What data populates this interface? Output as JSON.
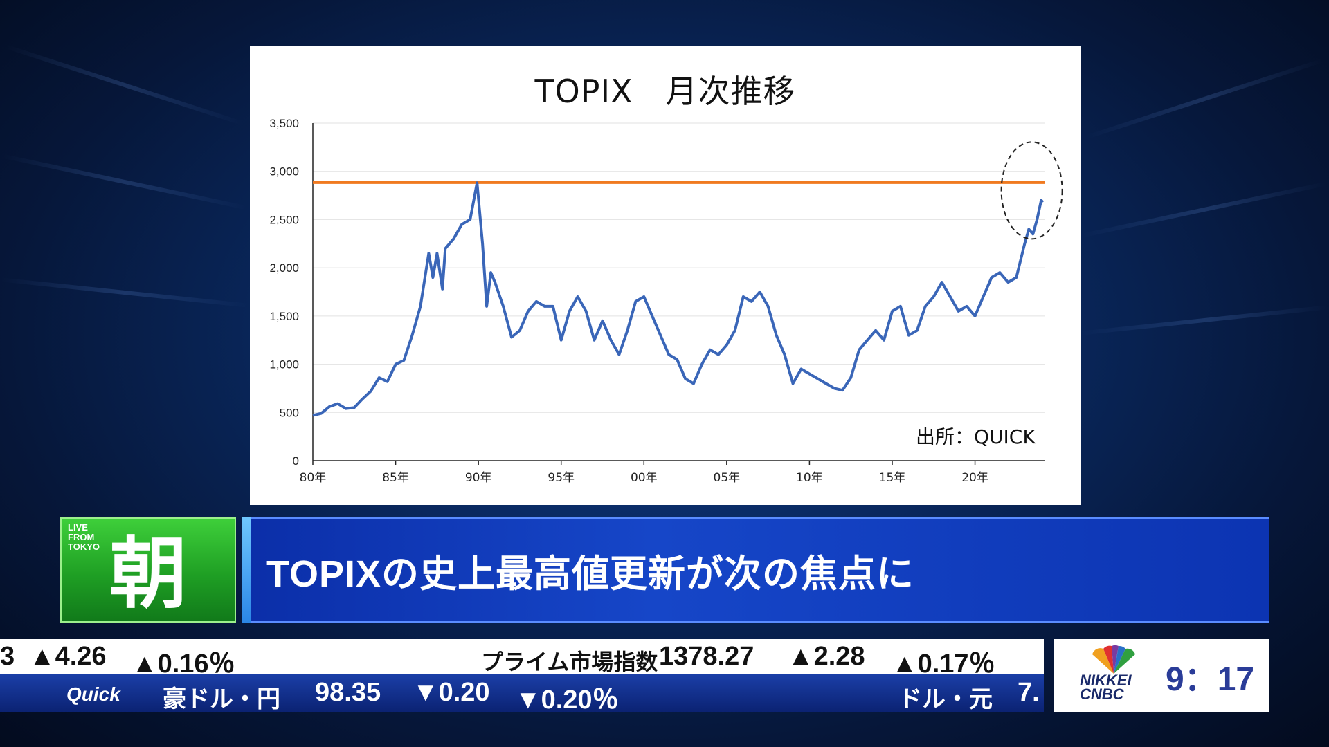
{
  "chart_data": {
    "type": "line",
    "title": "TOPIX　月次推移",
    "source": "出所：QUICK",
    "x_tick_labels": [
      "80年",
      "85年",
      "90年",
      "95年",
      "00年",
      "05年",
      "10年",
      "15年",
      "20年"
    ],
    "y_tick_labels": [
      "0",
      "500",
      "1,000",
      "1,500",
      "2,000",
      "2,500",
      "3,000",
      "3,500"
    ],
    "ylim": [
      0,
      3500
    ],
    "xlim": [
      1980,
      2024.2
    ],
    "grid": true,
    "reference_line": {
      "value": 2884,
      "color": "#f07a20"
    },
    "annotation": "dashed-circle-around-latest-point",
    "series": [
      {
        "color": "#3a66b8",
        "x": [
          1980,
          1980.5,
          1981,
          1981.5,
          1982,
          1982.5,
          1983,
          1983.5,
          1984,
          1984.5,
          1985,
          1985.5,
          1986,
          1986.5,
          1987,
          1987.25,
          1987.5,
          1987.83,
          1988,
          1988.5,
          1989,
          1989.5,
          1989.92,
          1990.25,
          1990.5,
          1990.75,
          1991,
          1991.5,
          1992,
          1992.5,
          1993,
          1993.5,
          1994,
          1994.5,
          1995,
          1995.5,
          1996,
          1996.5,
          1997,
          1997.5,
          1998,
          1998.5,
          1999,
          1999.5,
          2000,
          2000.5,
          2001,
          2001.5,
          2002,
          2002.5,
          2003,
          2003.5,
          2004,
          2004.5,
          2005,
          2005.5,
          2006,
          2006.5,
          2007,
          2007.5,
          2008,
          2008.5,
          2009,
          2009.5,
          2010,
          2010.5,
          2011,
          2011.5,
          2012,
          2012.5,
          2013,
          2013.5,
          2014,
          2014.5,
          2015,
          2015.5,
          2016,
          2016.5,
          2017,
          2017.5,
          2018,
          2018.5,
          2019,
          2019.5,
          2020,
          2020.5,
          2021,
          2021.5,
          2022,
          2022.5,
          2023,
          2023.25,
          2023.5,
          2023.75,
          2024,
          2024.1
        ],
        "y": [
          470,
          490,
          560,
          590,
          540,
          550,
          640,
          720,
          860,
          820,
          1000,
          1040,
          1300,
          1600,
          2150,
          1900,
          2150,
          1780,
          2200,
          2300,
          2450,
          2500,
          2881,
          2250,
          1600,
          1950,
          1850,
          1600,
          1280,
          1350,
          1550,
          1650,
          1600,
          1600,
          1250,
          1550,
          1700,
          1550,
          1250,
          1450,
          1250,
          1100,
          1350,
          1650,
          1700,
          1500,
          1300,
          1100,
          1050,
          850,
          800,
          1000,
          1150,
          1100,
          1200,
          1350,
          1700,
          1650,
          1750,
          1600,
          1300,
          1100,
          800,
          950,
          900,
          850,
          800,
          750,
          730,
          860,
          1150,
          1250,
          1350,
          1250,
          1550,
          1600,
          1300,
          1350,
          1600,
          1700,
          1850,
          1700,
          1550,
          1600,
          1500,
          1700,
          1900,
          1950,
          1850,
          1900,
          2250,
          2400,
          2350,
          2500,
          2700,
          2680
        ]
      }
    ]
  },
  "lower_third": {
    "live_label": [
      "LIVE",
      "FROM",
      "TOKYO"
    ],
    "program": "朝",
    "headline": "TOPIXの史上最高値更新が次の焦点に"
  },
  "ticker": {
    "top": {
      "left_fragment": "3",
      "left_change": "▲4.26",
      "left_pct": "▲0.16％",
      "name": "プライム市場指数",
      "value": "1378.27",
      "change": "▲2.28",
      "pct": "▲0.17％"
    },
    "bottom": {
      "brand": "Quick",
      "name": "豪ドル・円",
      "value": "98.35",
      "change": "▼0.20",
      "pct": "▼0.20％",
      "next_name": "ドル・元",
      "next_value": "7."
    }
  },
  "corner": {
    "logo_line1": "NIKKEI",
    "logo_line2": "CNBC",
    "time": "9：17"
  }
}
